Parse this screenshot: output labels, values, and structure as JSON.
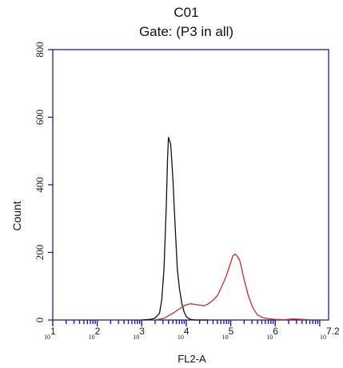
{
  "chart_data": {
    "type": "line",
    "title": "C01",
    "subtitle": "Gate: (P3 in all)",
    "xlabel": "FL2-A",
    "ylabel": "Count",
    "x_scale": "log10",
    "xlim": [
      10,
      15848932
    ],
    "ylim": [
      0,
      800
    ],
    "yticks": [
      0,
      200,
      400,
      600,
      800
    ],
    "xtick_labels": [
      {
        "base": "10",
        "exp": "1"
      },
      {
        "base": "10",
        "exp": "2"
      },
      {
        "base": "10",
        "exp": "3"
      },
      {
        "base": "10",
        "exp": "4"
      },
      {
        "base": "10",
        "exp": "5"
      },
      {
        "base": "10",
        "exp": "6"
      },
      {
        "base": "10",
        "exp": "7.2"
      }
    ],
    "grid": false,
    "colors": {
      "frame": "#1a1fa0",
      "series_black": "#111111",
      "series_red": "#cc2b2b"
    },
    "series": [
      {
        "color": "#111111",
        "x": [
          1000,
          1580,
          2000,
          2510,
          2820,
          3160,
          3550,
          3800,
          3980,
          4470,
          5010,
          5620,
          6310,
          7080,
          7940,
          8910,
          10000,
          11200,
          12600,
          14100,
          15800,
          20000,
          30000
        ],
        "y": [
          0,
          2,
          6,
          20,
          60,
          150,
          330,
          480,
          540,
          520,
          420,
          280,
          150,
          90,
          50,
          25,
          10,
          5,
          2,
          1,
          0,
          0,
          0
        ]
      },
      {
        "color": "#cc2b2b",
        "x": [
          2000,
          3160,
          5010,
          7940,
          10000,
          12600,
          15800,
          20000,
          25100,
          31600,
          39800,
          50100,
          63100,
          79400,
          100000,
          112000,
          126000,
          141000,
          158000,
          178000,
          200000,
          251000,
          316000,
          398000,
          501000,
          631000,
          794000,
          1000000,
          1580000,
          2510000,
          3980000,
          6310000
        ],
        "y": [
          0,
          5,
          20,
          38,
          45,
          48,
          46,
          44,
          42,
          48,
          58,
          72,
          100,
          130,
          170,
          190,
          195,
          188,
          178,
          150,
          120,
          70,
          35,
          15,
          8,
          5,
          3,
          2,
          1,
          3,
          2,
          0
        ]
      }
    ]
  }
}
